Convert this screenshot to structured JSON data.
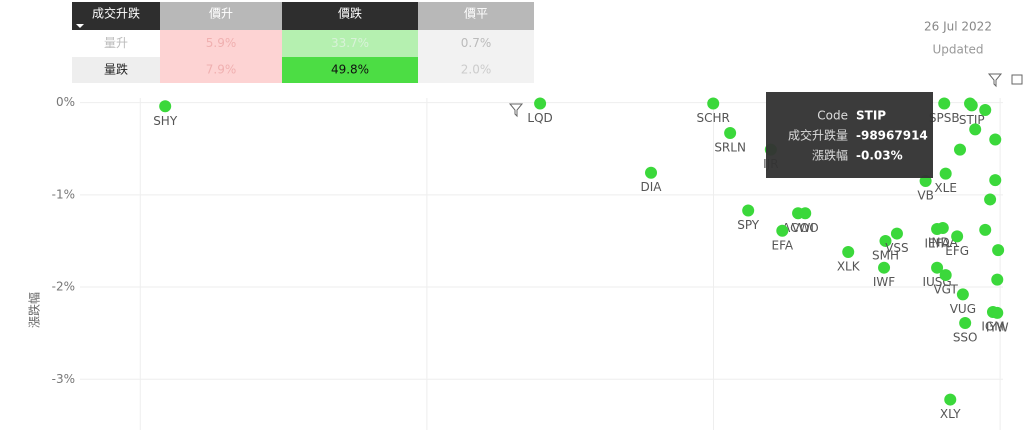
{
  "matrix": {
    "header": [
      "成交升跌",
      "價升",
      "價跌",
      "價平"
    ],
    "rows": [
      [
        "量升",
        "5.9%",
        "33.7%",
        "0.7%"
      ],
      [
        "量跌",
        "7.9%",
        "49.8%",
        "2.0%"
      ]
    ]
  },
  "date": "26 Jul 2022",
  "updated": "Updated",
  "tooltip": [
    {
      "label": "Code",
      "value": "STIP"
    },
    {
      "label": "成交升跌量",
      "value": -98967914
    },
    {
      "label": "漲跌幅",
      "value": "-0.03%"
    }
  ],
  "chart_data": {
    "type": "scatter",
    "y_label": "漲跌幅",
    "color": "#3bd83b",
    "grid": true,
    "xlim": [
      -3280000000,
      10000000
    ],
    "xticks": [
      -3000000000,
      -2000000000,
      -1000000000,
      0
    ],
    "ylim": [
      -3.55,
      0.05
    ],
    "yticks": [
      {
        "value": 0,
        "label": "0%"
      },
      {
        "value": -1,
        "label": "-1%"
      },
      {
        "value": -2,
        "label": "-2%"
      },
      {
        "value": -3,
        "label": "-3%"
      }
    ],
    "categories": [
      "SHY",
      "LQD",
      "SCHR",
      "SRLN",
      "IJR",
      "DIA",
      "SPY",
      "ACWI",
      "VOO",
      "EFA",
      "XLK",
      "SMH",
      "VSS",
      "IEFA",
      "INDA",
      "EFG",
      "IWF",
      "IUSG",
      "VGT",
      "VUG",
      "IGM",
      "IYW",
      "SSO",
      "XLY",
      "VB",
      "XLE",
      "SPSB",
      "STIP",
      null,
      null,
      null,
      null,
      null,
      null,
      null,
      null,
      null,
      null
    ],
    "x": [
      -2913000000,
      -1605000000,
      -1001000000,
      -942000000,
      -800000000,
      -1218000000,
      -879000000,
      -705000000,
      -680000000,
      -760000000,
      -530000000,
      -400000000,
      -360000000,
      -220000000,
      -200000000,
      -150000000,
      -405000000,
      -220000000,
      -190000000,
      -130000000,
      -25000000,
      -10000000,
      -122000000,
      -174000000,
      -260000000,
      -190000000,
      -195000000,
      -98967914,
      -105000000,
      -52000000,
      -17000000,
      -35000000,
      -7000000,
      -52000000,
      -17000000,
      -140000000,
      -87000000,
      -10000000
    ],
    "values": [
      -0.04,
      -0.01,
      -0.01,
      -0.33,
      -0.51,
      -0.76,
      -1.17,
      -1.2,
      -1.2,
      -1.39,
      -1.62,
      -1.5,
      -1.42,
      -1.37,
      -1.36,
      -1.45,
      -1.79,
      -1.79,
      -1.87,
      -2.08,
      -2.27,
      -2.28,
      -2.39,
      -3.22,
      -0.85,
      -0.77,
      -0.01,
      -0.03,
      -0.01,
      -0.08,
      -0.4,
      -1.05,
      -1.6,
      -1.38,
      -0.84,
      -0.51,
      -0.29,
      -1.92
    ]
  }
}
